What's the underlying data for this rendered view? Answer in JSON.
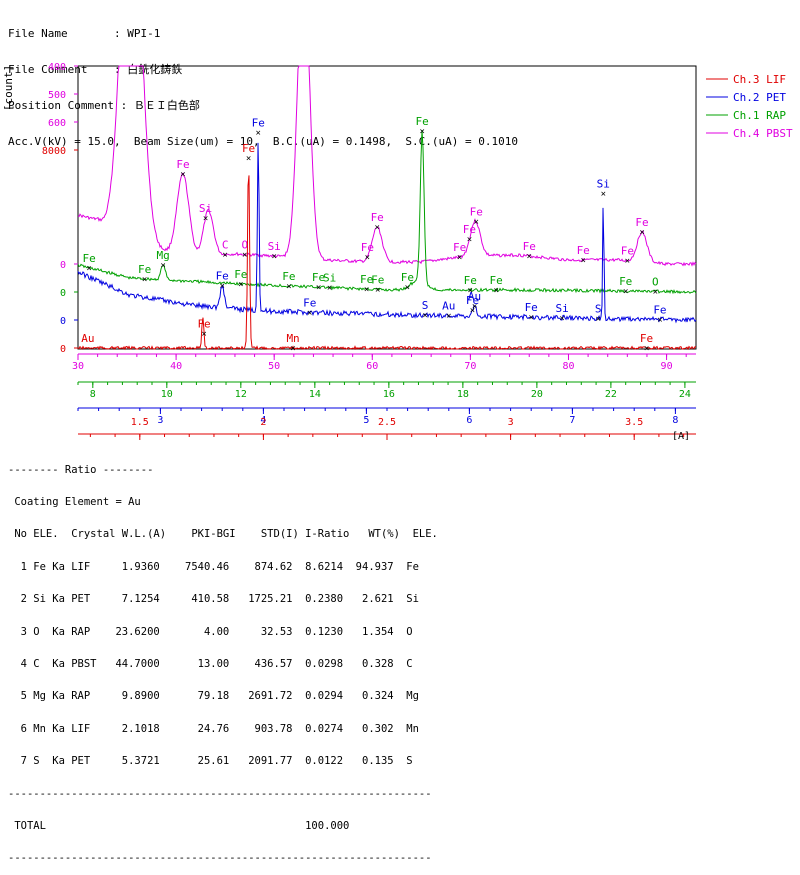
{
  "header": {
    "lines": [
      "File Name       : WPI-1",
      "File Comment    : 白銑化鋳鉄",
      "Position Comment : ＢＥＩ白色部",
      "Acc.V(kV) = 15.0,  Beam Size(um) = 10,  B.C.(uA) = 0.1498,  S.C.(uA) = 0.1010"
    ]
  },
  "chart_data": {
    "type": "line",
    "ylabel": "[count]",
    "xunit": "[A]",
    "x_axes": [
      {
        "name": "Ch.4 PBST",
        "color": "#e000e0",
        "ticks": [
          "30",
          "40",
          "50",
          "60",
          "70",
          "80",
          "90"
        ],
        "range": [
          30,
          93
        ]
      },
      {
        "name": "Ch.1 RAP",
        "color": "#00a000",
        "ticks": [
          "8",
          "10",
          "12",
          "14",
          "16",
          "18",
          "20",
          "22",
          "24"
        ],
        "range": [
          7.6,
          24.3
        ]
      },
      {
        "name": "Ch.2 PET",
        "color": "#0000e0",
        "ticks": [
          "3",
          "4",
          "5",
          "6",
          "7",
          "8"
        ],
        "range": [
          2.2,
          8.2
        ]
      },
      {
        "name": "Ch.3 LIF",
        "color": "#e00000",
        "ticks": [
          "1.5",
          "2",
          "2.5",
          "3",
          "3.5"
        ],
        "range": [
          1.25,
          3.75
        ]
      }
    ],
    "y_scales": [
      {
        "series": "Ch.4 PBST",
        "color": "#e000e0",
        "ticks": [
          "400",
          "500",
          "600"
        ],
        "baseline": "0"
      },
      {
        "series": "Ch.1 RAP",
        "color": "#00a000",
        "ticks": [],
        "baseline": "0"
      },
      {
        "series": "Ch.2 PET",
        "color": "#0000e0",
        "ticks": [],
        "baseline": "0"
      },
      {
        "series": "Ch.3 LIF",
        "color": "#e00000",
        "ticks": [
          "8000"
        ],
        "baseline": "0"
      }
    ],
    "legend": {
      "placement": "right",
      "entries": [
        {
          "label": "Ch.3  LIF",
          "color": "#e00000"
        },
        {
          "label": "Ch.2  PET",
          "color": "#0000e0"
        },
        {
          "label": "Ch.1  RAP",
          "color": "#00a000"
        },
        {
          "label": "Ch.4  PBST",
          "color": "#e000e0"
        }
      ]
    },
    "series": [
      {
        "name": "Ch.4 PBST",
        "color": "#e000e0",
        "x_axis": 0,
        "base": [
          [
            30,
            215
          ],
          [
            32,
            220
          ],
          [
            34,
            240
          ],
          [
            38,
            250
          ],
          [
            42,
            256
          ],
          [
            46,
            254
          ],
          [
            50,
            256
          ],
          [
            55,
            260
          ],
          [
            60,
            262
          ],
          [
            65,
            262
          ],
          [
            70,
            256
          ],
          [
            75,
            255
          ],
          [
            80,
            260
          ],
          [
            85,
            260
          ],
          [
            90,
            264
          ],
          [
            93,
            264
          ]
        ],
        "peaks": [
          [
            35.4,
            400,
            1.0
          ],
          [
            40.7,
            80,
            0.6
          ],
          [
            43.3,
            45,
            0.5
          ],
          [
            53.0,
            300,
            0.6
          ],
          [
            60.5,
            35,
            0.5
          ],
          [
            70.5,
            35,
            0.5
          ],
          [
            87.5,
            30,
            0.5
          ]
        ],
        "labels": [
          {
            "x": 35.4,
            "text": "Fe",
            "marker": true
          },
          {
            "x": 40.7,
            "text": "Fe",
            "marker": true
          },
          {
            "x": 43.0,
            "text": "Si",
            "marker": true
          },
          {
            "x": 45.0,
            "text": "C",
            "marker": true
          },
          {
            "x": 47.0,
            "text": "O",
            "marker": true
          },
          {
            "x": 50.0,
            "text": "Si",
            "marker": true
          },
          {
            "x": 53.0,
            "text": "Fe",
            "marker": true
          },
          {
            "x": 59.5,
            "text": "Fe",
            "marker": true
          },
          {
            "x": 60.5,
            "text": "Fe",
            "marker": true
          },
          {
            "x": 68.9,
            "text": "Fe",
            "marker": true
          },
          {
            "x": 69.9,
            "text": "Fe",
            "marker": true
          },
          {
            "x": 70.6,
            "text": "Fe",
            "marker": true
          },
          {
            "x": 76.0,
            "text": "Fe",
            "marker": true
          },
          {
            "x": 81.5,
            "text": "Fe",
            "marker": true
          },
          {
            "x": 86.0,
            "text": "Fe",
            "marker": true
          },
          {
            "x": 87.5,
            "text": "Fe",
            "marker": true
          }
        ]
      },
      {
        "name": "Ch.1 RAP",
        "color": "#00a000",
        "x_axis": 1,
        "base": [
          [
            7.6,
            265
          ],
          [
            9,
            278
          ],
          [
            12,
            284
          ],
          [
            16,
            290
          ],
          [
            20,
            290
          ],
          [
            24.3,
            292
          ]
        ],
        "peaks": [
          [
            9.9,
            15,
            0.06
          ],
          [
            16.9,
            150,
            0.05
          ],
          [
            16.8,
            10,
            0.2
          ]
        ],
        "labels": [
          {
            "x": 7.9,
            "text": "Fe",
            "marker": true
          },
          {
            "x": 9.4,
            "text": "Fe",
            "marker": true
          },
          {
            "x": 9.9,
            "text": "Mg",
            "marker": true
          },
          {
            "x": 12.0,
            "text": "Fe",
            "marker": true
          },
          {
            "x": 13.3,
            "text": "Fe",
            "marker": true
          },
          {
            "x": 14.1,
            "text": "Fe",
            "marker": true
          },
          {
            "x": 14.4,
            "text": "Si",
            "marker": true
          },
          {
            "x": 15.4,
            "text": "Fe",
            "marker": true
          },
          {
            "x": 15.7,
            "text": "Fe",
            "marker": true
          },
          {
            "x": 16.5,
            "text": "Fe",
            "marker": true
          },
          {
            "x": 16.9,
            "text": "Fe",
            "marker": true
          },
          {
            "x": 18.2,
            "text": "Fe",
            "marker": true
          },
          {
            "x": 18.9,
            "text": "Fe",
            "marker": true
          },
          {
            "x": 22.4,
            "text": "Fe",
            "marker": true
          },
          {
            "x": 23.2,
            "text": "O",
            "marker": true
          }
        ]
      },
      {
        "name": "Ch.2 PET",
        "color": "#0000e0",
        "x_axis": 2,
        "base": [
          [
            2.2,
            272
          ],
          [
            2.7,
            295
          ],
          [
            3.3,
            305
          ],
          [
            4.0,
            311
          ],
          [
            5.0,
            314
          ],
          [
            6.0,
            316
          ],
          [
            7.0,
            318
          ],
          [
            8.2,
            320
          ]
        ],
        "peaks": [
          [
            3.6,
            22,
            0.02
          ],
          [
            3.95,
            178,
            0.008
          ],
          [
            7.3,
            125,
            0.006
          ],
          [
            6.05,
            10,
            0.02
          ]
        ],
        "labels": [
          {
            "x": 3.6,
            "text": "Fe",
            "marker": true
          },
          {
            "x": 3.95,
            "text": "Fe",
            "marker": true
          },
          {
            "x": 4.45,
            "text": "Fe",
            "marker": true
          },
          {
            "x": 6.6,
            "text": "Fe",
            "marker": true
          },
          {
            "x": 5.8,
            "text": "Au",
            "marker": true
          },
          {
            "x": 6.05,
            "text": "Au",
            "marker": true
          },
          {
            "x": 6.03,
            "text": "Fe",
            "marker": true
          },
          {
            "x": 5.57,
            "text": "S",
            "marker": true
          },
          {
            "x": 6.9,
            "text": "Si",
            "marker": true
          },
          {
            "x": 7.25,
            "text": "S",
            "marker": true
          },
          {
            "x": 7.3,
            "text": "Si",
            "marker": true
          },
          {
            "x": 7.85,
            "text": "Fe",
            "marker": true
          }
        ]
      },
      {
        "name": "Ch.3 LIF",
        "color": "#e00000",
        "x_axis": 3,
        "base": [
          [
            1.25,
            348
          ],
          [
            3.75,
            348
          ]
        ],
        "peaks": [
          [
            1.755,
            32,
            0.004
          ],
          [
            1.94,
            190,
            0.004
          ]
        ],
        "labels": [
          {
            "x": 1.29,
            "text": "Au",
            "marker": false
          },
          {
            "x": 1.76,
            "text": "Fe",
            "marker": true
          },
          {
            "x": 1.94,
            "text": "Fe",
            "marker": true
          },
          {
            "x": 2.12,
            "text": "Mn",
            "marker": true
          },
          {
            "x": 3.55,
            "text": "Fe",
            "marker": true
          }
        ]
      }
    ]
  },
  "results": {
    "lines": [
      "-------- Ratio --------",
      " Coating Element = Au",
      " No ELE.  Crystal W.L.(A)    PKI-BGI    STD(I) I-Ratio   WT(%)  ELE.",
      "  1 Fe Ka LIF     1.9360    7540.46    874.62  8.6214  94.937  Fe",
      "  2 Si Ka PET     7.1254     410.58   1725.21  0.2380   2.621  Si",
      "  3 O  Ka RAP    23.6200       4.00     32.53  0.1230   1.354  O",
      "  4 C  Ka PBST   44.7000      13.00    436.57  0.0298   0.328  C",
      "  5 Mg Ka RAP     9.8900      79.18   2691.72  0.0294   0.324  Mg",
      "  6 Mn Ka LIF     2.1018      24.76    903.78  0.0274   0.302  Mn",
      "  7 S  Ka PET     5.3721      25.61   2091.77  0.0122   0.135  S",
      "-------------------------------------------------------------------",
      " TOTAL                                         100.000",
      "-------------------------------------------------------------------"
    ]
  }
}
